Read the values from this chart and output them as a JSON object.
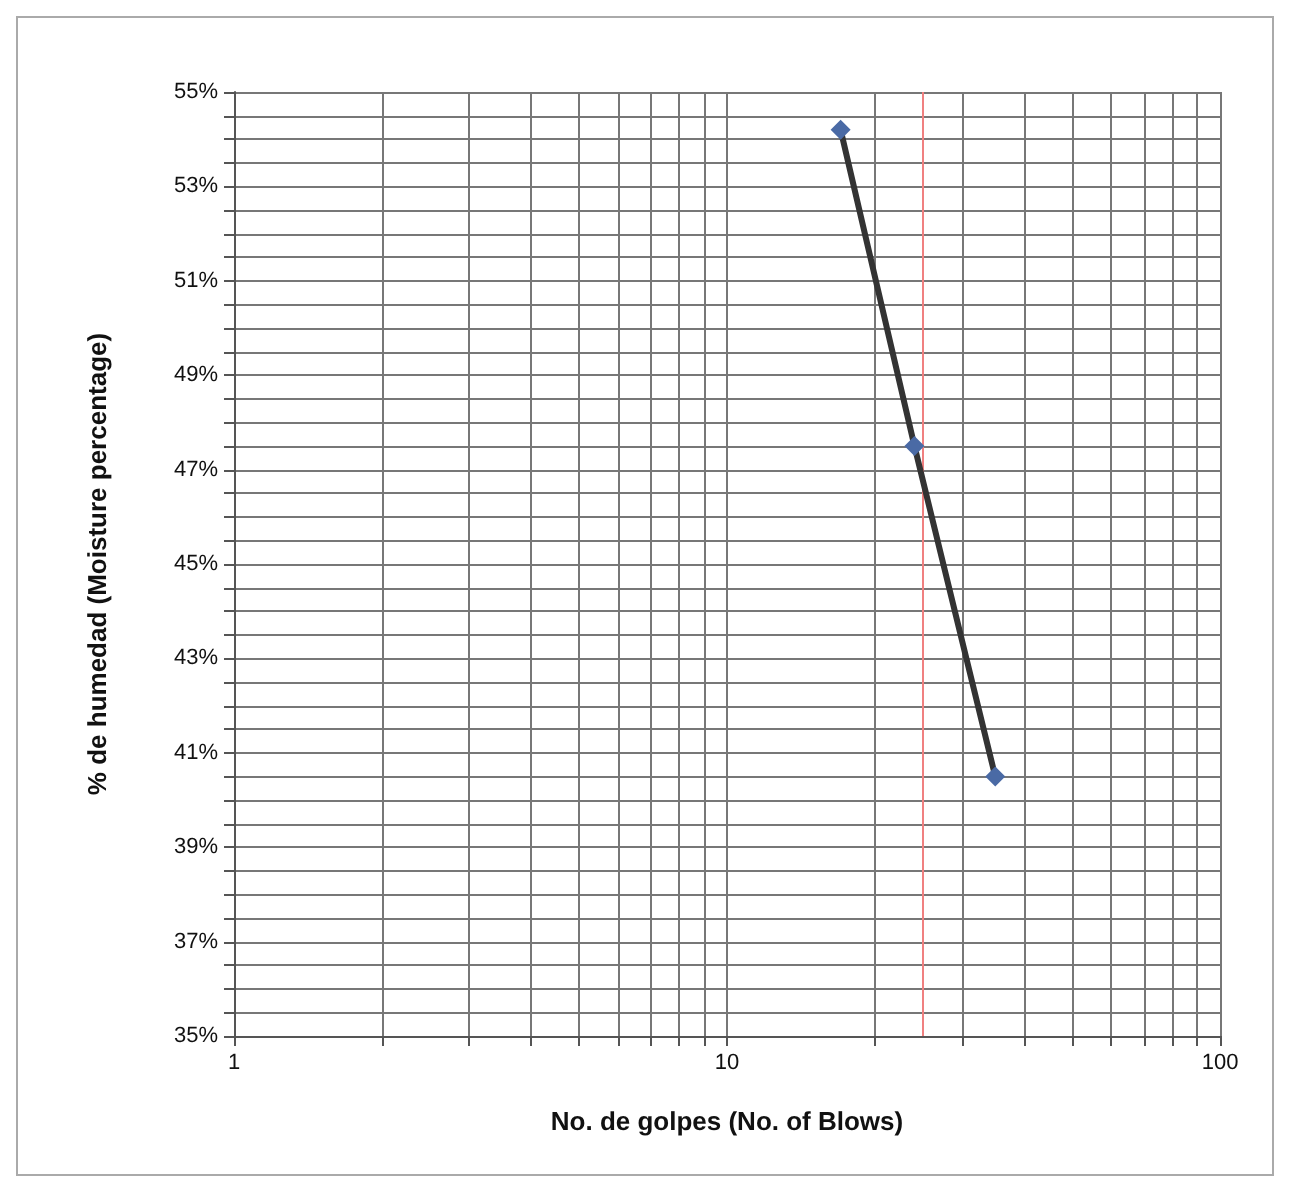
{
  "chart_data": {
    "type": "line",
    "xlabel": "No. de golpes (No. of Blows)",
    "ylabel": "% de humedad (Moisture percentage)",
    "x": [
      17,
      24,
      35
    ],
    "series": [
      {
        "color": "#4a6aa5",
        "values": [
          54.2,
          47.5,
          40.5
        ]
      }
    ],
    "log": "x",
    "xlim": [
      1,
      100
    ],
    "xticks": [
      1,
      {
        "value": 2,
        "label": null
      },
      {
        "value": 3,
        "label": null
      },
      {
        "value": 4,
        "label": null
      },
      {
        "value": 5,
        "label": null
      },
      {
        "value": 6,
        "label": null
      },
      {
        "value": 7,
        "label": null
      },
      {
        "value": 8,
        "label": null
      },
      {
        "value": 9,
        "label": null
      },
      10,
      {
        "value": 20,
        "label": null
      },
      {
        "value": 30,
        "label": null
      },
      {
        "value": 40,
        "label": null
      },
      {
        "value": 50,
        "label": null
      },
      {
        "value": 60,
        "label": null
      },
      {
        "value": 70,
        "label": null
      },
      {
        "value": 80,
        "label": null
      },
      {
        "value": 90,
        "label": null
      },
      100
    ],
    "ylim": [
      35,
      55
    ],
    "yticks": [
      {
        "value": 35,
        "label": "35%"
      },
      {
        "value": 35.5,
        "label": null
      },
      {
        "value": 36,
        "label": null
      },
      {
        "value": 36.5,
        "label": null
      },
      {
        "value": 37,
        "label": "37%"
      },
      {
        "value": 37.5,
        "label": null
      },
      {
        "value": 38,
        "label": null
      },
      {
        "value": 38.5,
        "label": null
      },
      {
        "value": 39,
        "label": "39%"
      },
      {
        "value": 39.5,
        "label": null
      },
      {
        "value": 40,
        "label": null
      },
      {
        "value": 40.5,
        "label": null
      },
      {
        "value": 41,
        "label": "41%"
      },
      {
        "value": 41.5,
        "label": null
      },
      {
        "value": 42,
        "label": null
      },
      {
        "value": 42.5,
        "label": null
      },
      {
        "value": 43,
        "label": "43%"
      },
      {
        "value": 43.5,
        "label": null
      },
      {
        "value": 44,
        "label": null
      },
      {
        "value": 44.5,
        "label": null
      },
      {
        "value": 45,
        "label": "45%"
      },
      {
        "value": 45.5,
        "label": null
      },
      {
        "value": 46,
        "label": null
      },
      {
        "value": 46.5,
        "label": null
      },
      {
        "value": 47,
        "label": "47%"
      },
      {
        "value": 47.5,
        "label": null
      },
      {
        "value": 48,
        "label": null
      },
      {
        "value": 48.5,
        "label": null
      },
      {
        "value": 49,
        "label": "49%"
      },
      {
        "value": 49.5,
        "label": null
      },
      {
        "value": 50,
        "label": null
      },
      {
        "value": 50.5,
        "label": null
      },
      {
        "value": 51,
        "label": "51%"
      },
      {
        "value": 51.5,
        "label": null
      },
      {
        "value": 52,
        "label": null
      },
      {
        "value": 52.5,
        "label": null
      },
      {
        "value": 53,
        "label": "53%"
      },
      {
        "value": 53.5,
        "label": null
      },
      {
        "value": 54,
        "label": null
      },
      {
        "value": 54.5,
        "label": null
      },
      {
        "value": 55,
        "label": "55%"
      }
    ],
    "ref_lines": [
      {
        "axis": "x",
        "value": 25,
        "color": "#f08080"
      }
    ],
    "grid": true,
    "marker": "diamond",
    "line_style": "solid"
  }
}
